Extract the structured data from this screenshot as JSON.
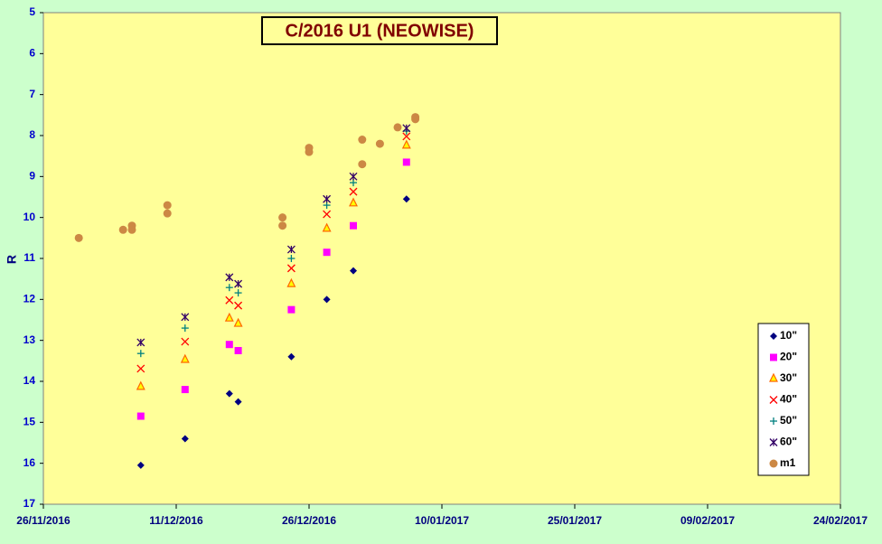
{
  "chart_data": {
    "type": "scatter",
    "title": "C/2016 U1 (NEOWISE)",
    "y_label": "R",
    "ylim": [
      17,
      5
    ],
    "yticks": [
      5,
      6,
      7,
      8,
      9,
      10,
      11,
      12,
      13,
      14,
      15,
      16,
      17
    ],
    "xlim": [
      "2016-11-26",
      "2017-02-24"
    ],
    "xticks": [
      {
        "value": "2016-11-26",
        "label": "26/11/2016"
      },
      {
        "value": "2016-12-11",
        "label": "11/12/2016"
      },
      {
        "value": "2016-12-26",
        "label": "26/12/2016"
      },
      {
        "value": "2017-01-10",
        "label": "10/01/2017"
      },
      {
        "value": "2017-01-25",
        "label": "25/01/2017"
      },
      {
        "value": "2017-02-09",
        "label": "09/02/2017"
      },
      {
        "value": "2017-02-24",
        "label": "24/02/2017"
      }
    ],
    "legend": "right",
    "series": [
      {
        "name": "10\"",
        "color": "#000080",
        "marker": "diamond",
        "x": [
          "2016-12-07",
          "2016-12-12",
          "2016-12-17",
          "2016-12-18",
          "2016-12-24",
          "2016-12-28",
          "2016-12-31",
          "2017-01-06"
        ],
        "values": [
          16.05,
          15.4,
          14.3,
          14.5,
          13.4,
          12.0,
          11.3,
          9.55
        ]
      },
      {
        "name": "20\"",
        "color": "#ff00ff",
        "marker": "square",
        "x": [
          "2016-12-07",
          "2016-12-12",
          "2016-12-17",
          "2016-12-18",
          "2016-12-24",
          "2016-12-28",
          "2016-12-31",
          "2017-01-06"
        ],
        "values": [
          14.85,
          14.2,
          13.1,
          13.25,
          12.25,
          10.85,
          10.2,
          8.65
        ]
      },
      {
        "name": "30\"",
        "color": "#ff6600",
        "marker": "triangle",
        "x": [
          "2016-12-07",
          "2016-12-12",
          "2016-12-17",
          "2016-12-18",
          "2016-12-24",
          "2016-12-28",
          "2016-12-31",
          "2017-01-06"
        ],
        "values": [
          14.13,
          13.47,
          12.46,
          12.59,
          11.62,
          10.27,
          9.65,
          8.24
        ]
      },
      {
        "name": "40\"",
        "color": "#ff0000",
        "marker": "x",
        "x": [
          "2016-12-07",
          "2016-12-12",
          "2016-12-17",
          "2016-12-18",
          "2016-12-24",
          "2016-12-28",
          "2016-12-31",
          "2017-01-06"
        ],
        "values": [
          13.69,
          13.03,
          12.02,
          12.15,
          11.24,
          9.92,
          9.37,
          8.02
        ]
      },
      {
        "name": "50\"",
        "color": "#008080",
        "marker": "plus",
        "x": [
          "2016-12-07",
          "2016-12-12",
          "2016-12-17",
          "2016-12-18",
          "2016-12-24",
          "2016-12-28",
          "2016-12-31",
          "2017-01-06"
        ],
        "values": [
          13.32,
          12.7,
          11.71,
          11.84,
          11.0,
          9.7,
          9.15,
          7.89
        ]
      },
      {
        "name": "60\"",
        "color": "#330066",
        "marker": "star",
        "x": [
          "2016-12-07",
          "2016-12-12",
          "2016-12-17",
          "2016-12-18",
          "2016-12-24",
          "2016-12-28",
          "2016-12-31",
          "2017-01-06"
        ],
        "values": [
          13.05,
          12.43,
          11.46,
          11.62,
          10.78,
          9.55,
          9.0,
          7.82
        ]
      },
      {
        "name": "m1",
        "color": "#cc8844",
        "marker": "circle",
        "x": [
          "2016-11-30",
          "2016-12-05",
          "2016-12-06",
          "2016-12-06",
          "2016-12-10",
          "2016-12-10",
          "2016-12-23",
          "2016-12-23",
          "2016-12-26",
          "2016-12-26",
          "2017-01-01",
          "2017-01-01",
          "2017-01-03",
          "2017-01-05",
          "2017-01-07",
          "2017-01-07"
        ],
        "values": [
          10.5,
          10.3,
          10.2,
          10.3,
          9.7,
          9.9,
          10.0,
          10.2,
          8.3,
          8.4,
          8.1,
          8.7,
          8.2,
          7.8,
          7.55,
          7.6
        ]
      }
    ]
  }
}
